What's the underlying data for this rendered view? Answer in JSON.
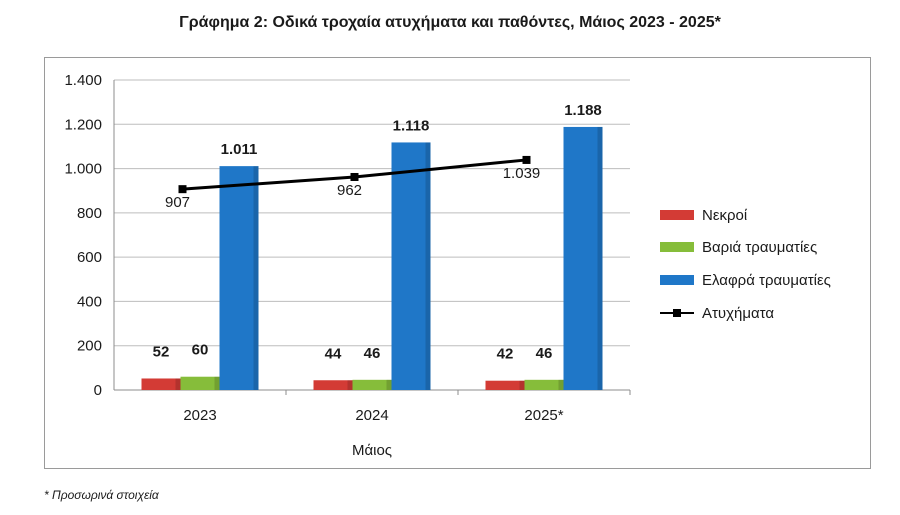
{
  "title": "Γράφημα 2: Οδικά τροχαία ατυχήματα και παθόντες, Μάιος 2023 - 2025*",
  "footnote": "* Προσωρινά στοιχεία",
  "chart_data": {
    "type": "bar",
    "title": "Γράφημα 2: Οδικά τροχαία ατυχήματα και παθόντες, Μάιος 2023 - 2025*",
    "xlabel": "Μάιος",
    "ylabel": "",
    "categories": [
      "2023",
      "2024",
      "2025*"
    ],
    "ylim": [
      0,
      1400
    ],
    "yticks": [
      0,
      200,
      400,
      600,
      800,
      1000,
      1200,
      1400
    ],
    "ytick_labels": [
      "0",
      "200",
      "400",
      "600",
      "800",
      "1.000",
      "1.200",
      "1.400"
    ],
    "grid": true,
    "legend_position": "right",
    "series": [
      {
        "name": "Νεκροί",
        "type": "bar",
        "color": "#d33b35",
        "values": [
          52,
          44,
          42
        ],
        "labels": [
          "52",
          "44",
          "42"
        ]
      },
      {
        "name": "Βαριά τραυματίες",
        "type": "bar",
        "color": "#86bd3a",
        "values": [
          60,
          46,
          46
        ],
        "labels": [
          "60",
          "46",
          "46"
        ]
      },
      {
        "name": "Ελαφρά τραυματίες",
        "type": "bar",
        "color": "#1f77c8",
        "values": [
          1011,
          1118,
          1188
        ],
        "labels": [
          "1.011",
          "1.118",
          "1.188"
        ]
      },
      {
        "name": "Ατυχήματα",
        "type": "line",
        "color": "#000000",
        "values": [
          907,
          962,
          1039
        ],
        "labels": [
          "907",
          "962",
          "1.039"
        ]
      }
    ]
  }
}
